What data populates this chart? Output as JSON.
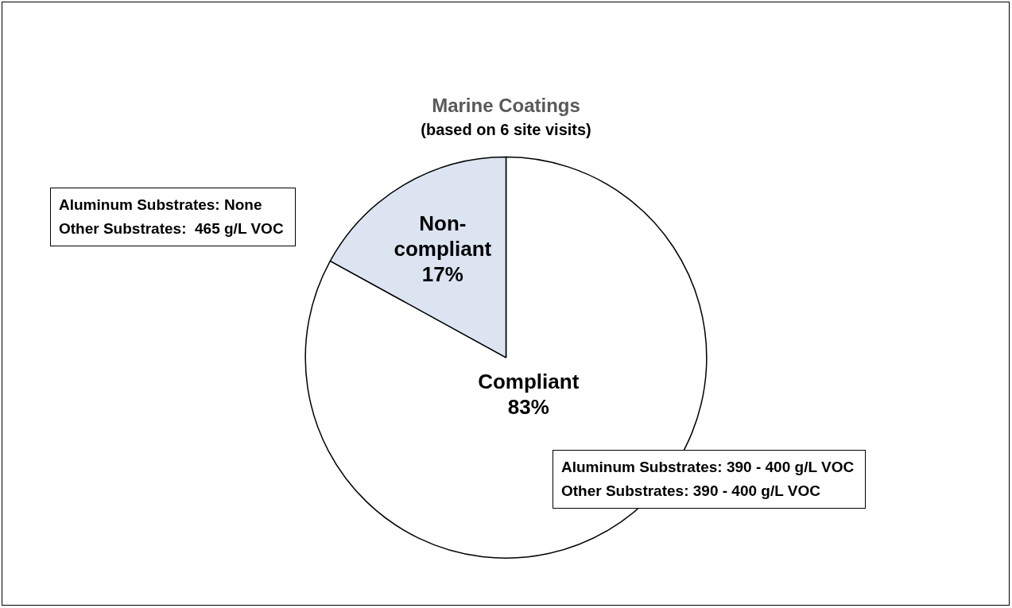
{
  "chart_data": {
    "type": "pie",
    "title": "Marine Coatings",
    "subtitle": "(based on 6 site visits)",
    "categories": [
      "Compliant",
      "Non-compliant"
    ],
    "values": [
      83,
      17
    ],
    "colors": [
      "#ffffff",
      "#dce4f2"
    ],
    "value_labels": [
      "83%",
      "17%"
    ],
    "legend": false,
    "annotations": [
      "Aluminum Substrates: 390 - 400 g/L VOC\nOther Substrates: 390 - 400 g/L VOC",
      "Aluminum Substrates: None\nOther Substrates:  465 g/L VOC"
    ]
  }
}
